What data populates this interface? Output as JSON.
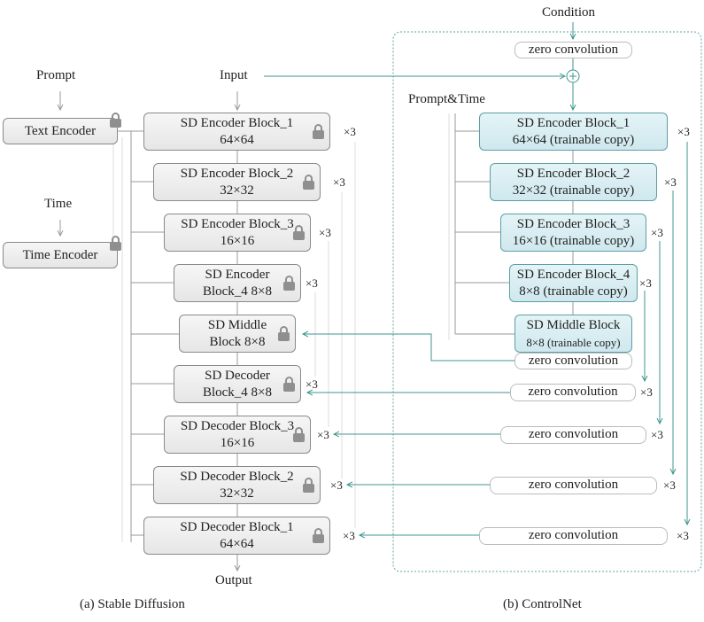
{
  "left": {
    "prompt": "Prompt",
    "time": "Time",
    "input": "Input",
    "output": "Output",
    "text_encoder": "Text Encoder",
    "time_encoder": "Time Encoder",
    "blocks": [
      {
        "l1": "SD Encoder Block_1",
        "l2": "64×64",
        "rep": "×3"
      },
      {
        "l1": "SD Encoder Block_2",
        "l2": "32×32",
        "rep": "×3"
      },
      {
        "l1": "SD Encoder Block_3",
        "l2": "16×16",
        "rep": "×3"
      },
      {
        "l1": "SD Encoder",
        "l2": "Block_4 8×8",
        "rep": "×3"
      },
      {
        "l1": "SD Middle",
        "l2": "Block 8×8"
      },
      {
        "l1": "SD Decoder",
        "l2": "Block_4 8×8",
        "rep": "×3"
      },
      {
        "l1": "SD Decoder Block_3",
        "l2": "16×16",
        "rep": "×3"
      },
      {
        "l1": "SD Decoder Block_2",
        "l2": "32×32",
        "rep": "×3"
      },
      {
        "l1": "SD Decoder Block_1",
        "l2": "64×64",
        "rep": "×3"
      }
    ],
    "caption": "(a) Stable Diffusion"
  },
  "right": {
    "condition": "Condition",
    "prompt_time": "Prompt&Time",
    "zero_conv": "zero convolution",
    "blocks": [
      {
        "l1": "SD Encoder Block_1",
        "l2": "64×64 (trainable copy)",
        "rep": "×3"
      },
      {
        "l1": "SD Encoder Block_2",
        "l2": "32×32 (trainable copy)",
        "rep": "×3"
      },
      {
        "l1": "SD Encoder Block_3",
        "l2": "16×16 (trainable copy)",
        "rep": "×3"
      },
      {
        "l1": "SD Encoder Block_4",
        "l2": "8×8 (trainable copy)",
        "rep": "×3"
      },
      {
        "l1": "SD Middle Block",
        "l2": "8×8 (trainable copy)"
      }
    ],
    "out_reps": [
      "×3",
      "×3",
      "×3",
      "×3"
    ],
    "caption": "(b) ControlNet"
  },
  "colors": {
    "teal": "#3f9490",
    "trainable_fill": "#d6edf2",
    "frozen_fill": "#ececec"
  }
}
